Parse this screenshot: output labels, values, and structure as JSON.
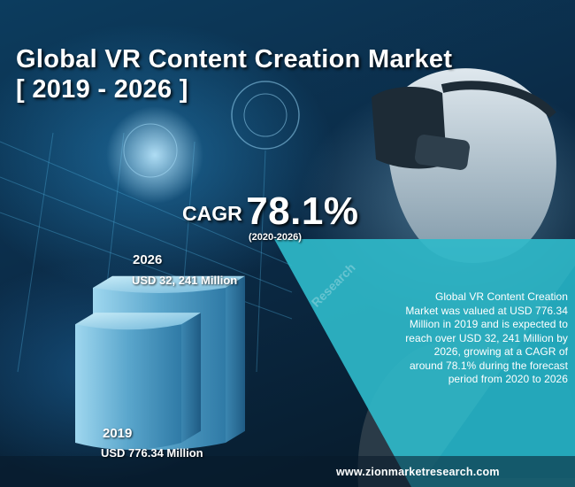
{
  "title_line1": "Global VR Content Creation Market",
  "title_line2": "[ 2019 - 2026 ]",
  "cagr": {
    "label": "CAGR",
    "value": "78.1%",
    "period": "(2020-2026)"
  },
  "summary": "Global VR Content Creation Market was valued at USD 776.34 Million in 2019 and is expected to reach over USD 32, 241 Million by 2026, growing at a CAGR of around 78.1% during the forecast period from 2020 to 2026",
  "website": "www.zionmarketresearch.com",
  "watermark": "Research",
  "colors": {
    "accent_teal": "#2fb9c9",
    "chart_blue": "#7fc8e6",
    "background": "#0b2b47"
  },
  "chart_data": {
    "type": "bar",
    "categories": [
      "2019",
      "2026"
    ],
    "values": [
      776.34,
      32241
    ],
    "value_labels": [
      "USD 776.34 Million",
      "USD 32, 241 Million"
    ],
    "title": "",
    "xlabel": "",
    "ylabel": ""
  }
}
